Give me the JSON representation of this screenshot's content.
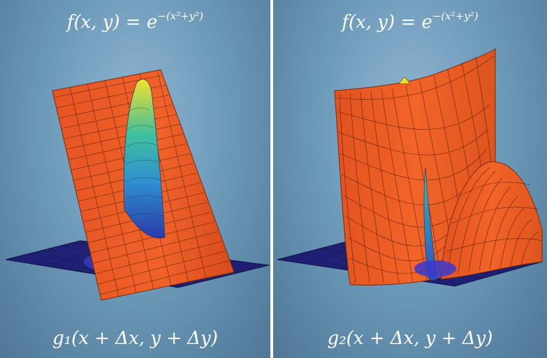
{
  "panels": [
    {
      "title_lhs": "f(x, y) = e",
      "title_exp": "−(x²+y²)",
      "caption": "g₁(x + Δx, y + Δy)"
    },
    {
      "title_lhs": "f(x, y) = e",
      "title_exp": "−(x²+y²)",
      "caption": "g₂(x + Δx, y + Δy)"
    }
  ],
  "colors": {
    "constraint_surface": "#ee5a24",
    "mesh_line": "#3a1606",
    "floor": "#20206e",
    "gaussian_low": "#2850c8",
    "gaussian_mid": "#30b8b0",
    "gaussian_high": "#f0e030",
    "background": "#6f9bbb"
  }
}
